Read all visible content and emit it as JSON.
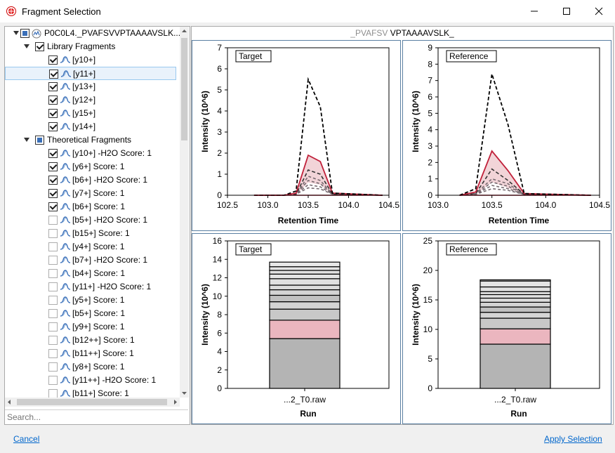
{
  "window": {
    "title": "Fragment Selection"
  },
  "tree": {
    "root": "P0C0L4._PVAFSVVPTAAAAVSLK...",
    "library_group": "Library Fragments",
    "library_items": [
      "[y10+]",
      "[y11+]",
      "[y13+]",
      "[y12+]",
      "[y15+]",
      "[y14+]"
    ],
    "theoretical_group": "Theoretical Fragments",
    "theoretical_items": [
      {
        "label": "[y10+] -H2O Score: 1",
        "checked": true
      },
      {
        "label": "[y6+] Score: 1",
        "checked": true
      },
      {
        "label": "[b6+] -H2O Score: 1",
        "checked": true
      },
      {
        "label": "[y7+] Score: 1",
        "checked": true
      },
      {
        "label": "[b6+] Score: 1",
        "checked": true
      },
      {
        "label": "[b5+] -H2O Score: 1",
        "checked": false
      },
      {
        "label": "[b15+] Score: 1",
        "checked": false
      },
      {
        "label": "[y4+] Score: 1",
        "checked": false
      },
      {
        "label": "[b7+] -H2O Score: 1",
        "checked": false
      },
      {
        "label": "[b4+] Score: 1",
        "checked": false
      },
      {
        "label": "[y11+] -H2O Score: 1",
        "checked": false
      },
      {
        "label": "[y5+] Score: 1",
        "checked": false
      },
      {
        "label": "[b5+] Score: 1",
        "checked": false
      },
      {
        "label": "[y9+] Score: 1",
        "checked": false
      },
      {
        "label": "[b12++] Score: 1",
        "checked": false
      },
      {
        "label": "[b11++] Score: 1",
        "checked": false
      },
      {
        "label": "[y8+] Score: 1",
        "checked": false
      },
      {
        "label": "[y11++] -H2O Score: 1",
        "checked": false
      },
      {
        "label": "[b11+] Score: 1",
        "checked": false
      }
    ],
    "hscroll_label": "III",
    "vscroll_label": "III"
  },
  "search": {
    "placeholder": "Search..."
  },
  "graphs": {
    "title_prefix": "_PVAFSV",
    "title_main": "VPTAAAAVSLK_"
  },
  "chart_data": [
    {
      "type": "line",
      "legend_label": "Target",
      "xlabel": "Retention Time",
      "ylabel": "Intensity (10^6)",
      "xlim": [
        102.5,
        104.5
      ],
      "ylim": [
        0,
        7
      ],
      "xticks": [
        "102.5",
        "103.0",
        "103.5",
        "104.0",
        "104.5"
      ],
      "yticks": [
        "0",
        "1",
        "2",
        "3",
        "4",
        "5",
        "6",
        "7"
      ],
      "x": [
        102.83,
        103.2,
        103.35,
        103.5,
        103.65,
        103.8,
        104.42
      ],
      "series": [
        {
          "style": "black-dash",
          "values": [
            0,
            0,
            0.2,
            5.5,
            4.2,
            0.1,
            0
          ]
        },
        {
          "style": "red-line",
          "values": [
            0,
            0,
            0.1,
            1.9,
            1.6,
            0.1,
            0
          ]
        },
        {
          "style": "dark-dash",
          "values": [
            0,
            0,
            0.05,
            1.2,
            1.0,
            0.05,
            0
          ]
        },
        {
          "style": "gray-dash",
          "values": [
            0,
            0,
            0.05,
            0.9,
            0.7,
            0.05,
            0
          ]
        },
        {
          "style": "gray-dash",
          "values": [
            0,
            0,
            0.05,
            0.7,
            0.55,
            0.05,
            0
          ]
        },
        {
          "style": "gray-dash",
          "values": [
            0,
            0,
            0.05,
            0.5,
            0.4,
            0.05,
            0
          ]
        },
        {
          "style": "gray-dash",
          "values": [
            0,
            0,
            0.05,
            0.35,
            0.3,
            0.05,
            0
          ]
        }
      ]
    },
    {
      "type": "line",
      "legend_label": "Reference",
      "xlabel": "Retention Time",
      "ylabel": "Intensity (10^6)",
      "xlim": [
        103.0,
        104.5
      ],
      "ylim": [
        0,
        9
      ],
      "xticks": [
        "103.0",
        "103.5",
        "104.0",
        "104.5"
      ],
      "yticks": [
        "0",
        "1",
        "2",
        "3",
        "4",
        "5",
        "6",
        "7",
        "8",
        "9"
      ],
      "x": [
        103.2,
        103.35,
        103.5,
        103.65,
        103.8,
        104.42
      ],
      "series": [
        {
          "style": "black-dash",
          "values": [
            0,
            0.4,
            7.4,
            4.3,
            0.1,
            0
          ]
        },
        {
          "style": "red-line",
          "values": [
            0,
            0.2,
            2.7,
            1.5,
            0.1,
            0
          ]
        },
        {
          "style": "dark-dash",
          "values": [
            0,
            0.1,
            1.6,
            0.9,
            0.05,
            0
          ]
        },
        {
          "style": "gray-dash",
          "values": [
            0,
            0.1,
            1.0,
            0.7,
            0.05,
            0
          ]
        },
        {
          "style": "gray-dash",
          "values": [
            0,
            0.05,
            0.8,
            0.55,
            0.05,
            0
          ]
        },
        {
          "style": "gray-dash",
          "values": [
            0,
            0.05,
            0.6,
            0.4,
            0.05,
            0
          ]
        },
        {
          "style": "gray-dash",
          "values": [
            0,
            0.05,
            0.4,
            0.3,
            0.05,
            0
          ]
        }
      ]
    },
    {
      "type": "bar",
      "legend_label": "Target",
      "xlabel": "Run",
      "ylabel": "Intensity (10^6)",
      "categories": [
        "...2_T0.raw"
      ],
      "ylim": [
        0,
        16
      ],
      "yticks": [
        "0",
        "2",
        "4",
        "6",
        "8",
        "10",
        "12",
        "14",
        "16"
      ],
      "stack": [
        5.4,
        2.0,
        1.2,
        0.8,
        0.7,
        0.6,
        0.5,
        0.7,
        0.5,
        0.4,
        0.4,
        0.5
      ],
      "stack_colors": [
        "#b4b4b4",
        "#ebb6bf",
        "#c8c8c8",
        "#d4d4d4",
        "#c0c0c0",
        "#d4d4d4",
        "#dcdcdc",
        "#e0e0e0",
        "#e4e4e4",
        "#e0e0e0",
        "#e4e4e4",
        "#e8e8e8"
      ]
    },
    {
      "type": "bar",
      "legend_label": "Reference",
      "xlabel": "Run",
      "ylabel": "Intensity (10^6)",
      "categories": [
        "...2_T0.raw"
      ],
      "ylim": [
        0,
        25
      ],
      "yticks": [
        "0",
        "5",
        "10",
        "15",
        "20",
        "25"
      ],
      "stack": [
        7.5,
        2.6,
        1.8,
        1.0,
        0.9,
        0.8,
        0.7,
        0.6,
        0.5,
        0.8,
        1.0,
        0.2
      ],
      "stack_colors": [
        "#b4b4b4",
        "#ebb6bf",
        "#c8c8c8",
        "#d4d4d4",
        "#c0c0c0",
        "#d4d4d4",
        "#dcdcdc",
        "#e0e0e0",
        "#e4e4e4",
        "#e0e0e0",
        "#e4e4e4",
        "#e8e8e8"
      ]
    }
  ],
  "footer": {
    "cancel": "Cancel",
    "apply": "Apply Selection"
  }
}
